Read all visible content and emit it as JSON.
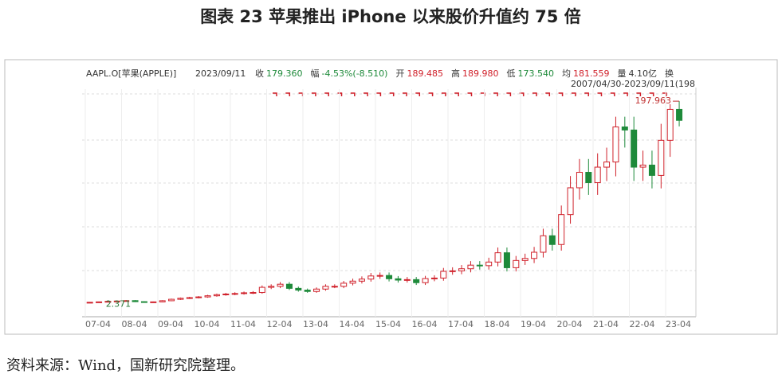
{
  "chart_data": {
    "type": "candlestick",
    "title": "图表 23  苹果推出 iPhone 以来股价升值约 75 倍",
    "quote_bar": {
      "symbol": "AAPL.O[苹果(APPLE)]",
      "date": "2023/09/11",
      "items": [
        {
          "label": "收",
          "value": "179.360"
        },
        {
          "label": "幅",
          "value": "-4.53%(-8.510)"
        },
        {
          "label": "开",
          "value": "189.485"
        },
        {
          "label": "高",
          "value": "189.980"
        },
        {
          "label": "低",
          "value": "173.540"
        },
        {
          "label": "均",
          "value": "181.559"
        },
        {
          "label": "量",
          "value": "4.10亿"
        },
        {
          "label": "换",
          "value": ""
        }
      ]
    },
    "range_label": "2007/04/30-2023/09/11(198",
    "x_labels": [
      "07-04",
      "08-04",
      "09-04",
      "10-04",
      "11-04",
      "12-04",
      "13-04",
      "14-04",
      "15-04",
      "16-04",
      "17-04",
      "18-04",
      "19-04",
      "20-04",
      "21-04",
      "22-04",
      "23-04"
    ],
    "candles": {
      "open": [
        2.5,
        3.0,
        3.4,
        3.9,
        4.2,
        4.6,
        3.6,
        3.0,
        3.4,
        4.5,
        5.9,
        6.9,
        7.5,
        8.2,
        9.3,
        10.4,
        11.0,
        11.5,
        12.2,
        12.5,
        17.5,
        18.5,
        20.5,
        16.5,
        14.8,
        13.5,
        15.8,
        18.5,
        18.5,
        21.5,
        23.5,
        25.5,
        28.5,
        29.0,
        25.8,
        24.5,
        25.0,
        22.0,
        26.0,
        26.5,
        33.0,
        33.5,
        35.5,
        39.0,
        38.5,
        42.0,
        51.0,
        36.5,
        43.5,
        45.5,
        51.5,
        67.5,
        59.0,
        88.0,
        114.0,
        129.0,
        119.0,
        134.0,
        139.0,
        173.0,
        170.0,
        134.0,
        136.0,
        126.0,
        160.0,
        190.0
      ],
      "high": [
        3.3,
        3.7,
        4.3,
        4.6,
        5.1,
        5.1,
        4.0,
        3.7,
        5.0,
        6.5,
        7.6,
        8.3,
        9.0,
        10.2,
        11.4,
        12.1,
        12.7,
        13.4,
        13.8,
        19.3,
        20.4,
        22.6,
        22.6,
        18.2,
        16.3,
        17.4,
        20.4,
        20.4,
        23.7,
        25.9,
        28.1,
        31.4,
        31.9,
        31.9,
        28.4,
        27.5,
        27.5,
        28.6,
        29.2,
        36.3,
        36.9,
        39.1,
        42.9,
        42.9,
        46.2,
        56.1,
        56.1,
        47.9,
        50.1,
        56.7,
        74.3,
        74.3,
        96.8,
        125.4,
        141.9,
        141.9,
        147.4,
        152.9,
        182.9,
        182.9,
        182.9,
        150.0,
        150.0,
        176.0,
        195.0,
        197.963
      ],
      "low": [
        2.371,
        2.7,
        3.1,
        3.5,
        3.8,
        3.2,
        2.7,
        2.7,
        3.1,
        4.1,
        5.3,
        6.2,
        6.8,
        7.4,
        8.4,
        9.4,
        9.9,
        10.4,
        11.0,
        11.3,
        15.8,
        16.7,
        14.9,
        13.3,
        12.2,
        12.2,
        14.2,
        16.7,
        16.7,
        19.4,
        21.2,
        23.0,
        25.7,
        23.2,
        22.1,
        22.1,
        19.8,
        19.8,
        23.4,
        23.9,
        29.7,
        30.2,
        32.0,
        34.7,
        34.7,
        37.8,
        32.9,
        32.9,
        39.2,
        41.0,
        46.4,
        53.1,
        53.1,
        79.2,
        102.6,
        107.1,
        107.1,
        120.6,
        125.1,
        153.0,
        120.6,
        120.6,
        113.4,
        113.4,
        144.0,
        173.54
      ],
      "close": [
        3.0,
        3.4,
        3.9,
        4.2,
        4.6,
        3.6,
        3.0,
        3.4,
        4.5,
        5.9,
        6.9,
        7.5,
        8.2,
        9.3,
        10.4,
        11.0,
        11.5,
        12.2,
        12.5,
        17.5,
        18.5,
        20.5,
        16.5,
        14.8,
        13.5,
        15.8,
        18.5,
        18.5,
        21.5,
        23.5,
        25.5,
        28.5,
        29.0,
        25.8,
        24.5,
        25.0,
        22.0,
        26.0,
        26.5,
        33.0,
        33.5,
        35.5,
        39.0,
        38.5,
        42.0,
        51.0,
        36.5,
        43.5,
        45.5,
        51.5,
        67.5,
        59.0,
        88.0,
        114.0,
        129.0,
        119.0,
        134.0,
        139.0,
        173.0,
        170.0,
        134.0,
        136.0,
        126.0,
        160.0,
        190.0,
        179.36
      ]
    },
    "up_color": "#d0202a",
    "down_color": "#1e8a3a",
    "ylim": [
      -11,
      205
    ],
    "source": "资料来源：Wind，国新研究院整理。"
  }
}
